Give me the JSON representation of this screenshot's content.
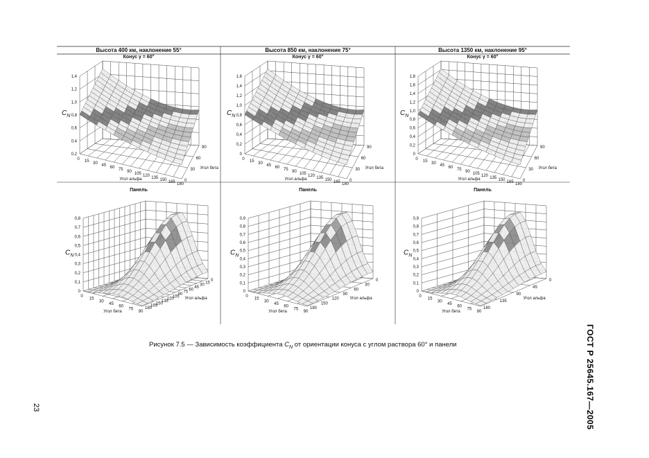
{
  "columns": [
    {
      "title": "Высота 400 км, наклонение 55°",
      "cone": {
        "subtitle": "Конус γ = 60°",
        "z_label": "C",
        "z_label_sub": "N",
        "z_ticks": [
          "0,2",
          "0,4",
          "0,6",
          "0,8",
          "1,0",
          "1,2",
          "1,4"
        ],
        "x_ticks": [
          "0",
          "15",
          "30",
          "45",
          "60",
          "75",
          "90",
          "105",
          "120",
          "135",
          "150",
          "165",
          "180"
        ],
        "x_label": "Угол альфа",
        "y_ticks": [
          "0",
          "30",
          "60",
          "90"
        ],
        "y_label": "Угол бета"
      },
      "panel": {
        "subtitle": "Панель",
        "z_label": "C",
        "z_label_sub": "N",
        "z_ticks": [
          "0",
          "0,1",
          "0,2",
          "0,3",
          "0,4",
          "0,5",
          "0,6",
          "0,7",
          "0,8"
        ],
        "x_ticks": [
          "0",
          "15",
          "30",
          "45",
          "60",
          "75",
          "90"
        ],
        "x_label": "Угол бета",
        "y_ticks": [
          "180",
          "165",
          "150",
          "135",
          "120",
          "105",
          "90",
          "75",
          "60",
          "45",
          "30",
          "15",
          "0"
        ],
        "y_label": "Угол альфа"
      }
    },
    {
      "title": "Высота 850 км, наклонение 75°",
      "cone": {
        "subtitle": "Конус γ = 60°",
        "z_label": "C",
        "z_label_sub": "N",
        "z_ticks": [
          "0",
          "0,2",
          "0,4",
          "0,6",
          "0,8",
          "1,0",
          "1,2",
          "1,4",
          "1,6"
        ],
        "x_ticks": [
          "0",
          "15",
          "30",
          "45",
          "60",
          "75",
          "90",
          "105",
          "120",
          "135",
          "150",
          "165",
          "180"
        ],
        "x_label": "Угол альфа",
        "y_ticks": [
          "0",
          "30",
          "60",
          "90"
        ],
        "y_label": "Угол бета"
      },
      "panel": {
        "subtitle": "Панель",
        "z_label": "C",
        "z_label_sub": "N",
        "z_ticks": [
          "0",
          "0,1",
          "0,2",
          "0,3",
          "0,4",
          "0,5",
          "0,6",
          "0,7",
          "0,8",
          "0,9"
        ],
        "x_ticks": [
          "0",
          "15",
          "30",
          "45",
          "60",
          "75",
          "90"
        ],
        "x_label": "Угол бета",
        "y_ticks": [
          "180",
          "150",
          "120",
          "90",
          "60",
          "30",
          "0"
        ],
        "y_label": "Угол альфа"
      }
    },
    {
      "title": "Высота 1350 км, наклонение 95°",
      "cone": {
        "subtitle": "Конус γ = 60°",
        "z_label": "C",
        "z_label_sub": "N",
        "z_ticks": [
          "0",
          "0,2",
          "0,4",
          "0,6",
          "0,8",
          "1,0",
          "1,2",
          "1,4",
          "1,6",
          "1,8"
        ],
        "x_ticks": [
          "0",
          "15",
          "30",
          "45",
          "60",
          "75",
          "90",
          "105",
          "120",
          "135",
          "150",
          "165",
          "180"
        ],
        "x_label": "Угол альфа",
        "y_ticks": [
          "0",
          "30",
          "60",
          "90"
        ],
        "y_label": "Угол бета"
      },
      "panel": {
        "subtitle": "Панель",
        "z_label": "C",
        "z_label_sub": "N",
        "z_ticks": [
          "0",
          "0,1",
          "0,2",
          "0,3",
          "0,4",
          "0,5",
          "0,6",
          "0,7",
          "0,8",
          "0,9"
        ],
        "x_ticks": [
          "0",
          "15",
          "30",
          "45",
          "60",
          "75",
          "90"
        ],
        "x_label": "Угол бета",
        "y_ticks": [
          "180",
          "135",
          "90",
          "45",
          "0"
        ],
        "y_label": "Угол альфа"
      }
    }
  ],
  "caption": {
    "before": "Рисунок 7.5 — Зависимость коэффициента ",
    "symbol": "C",
    "symbol_sub": "N",
    "after": " от ориентации конуса с углом раствора 60°  и панели"
  },
  "page_number": "23",
  "standard": "ГОСТ Р 25645.167—2005"
}
